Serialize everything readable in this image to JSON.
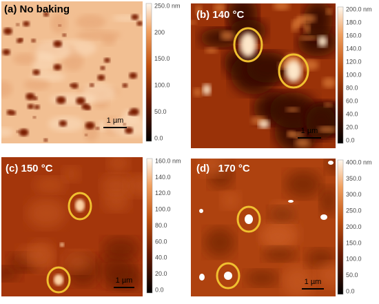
{
  "panels": [
    {
      "label": "(a) No baking",
      "scale_bar": "1 µm",
      "colorbar": [
        "250.0 nm",
        "200",
        "150.0",
        "100.0",
        "50.0",
        "0.0"
      ]
    },
    {
      "label": "(b) 140 °C",
      "scale_bar": "1 µm",
      "colorbar": [
        "200.0 nm",
        "180.0",
        "160.0",
        "140.0",
        "120.0",
        "100.0",
        "80.0",
        "60.0",
        "40.0",
        "20.0",
        "0.0"
      ]
    },
    {
      "label": "(c) 150 °C",
      "scale_bar": "1 µm",
      "colorbar": [
        "160.0 nm",
        "140.0",
        "120.0",
        "100.0",
        "80.0",
        "60.0",
        "40.0",
        "20.0",
        "0.0"
      ]
    },
    {
      "label": "(d)   170 °C",
      "scale_bar": "1 µm",
      "colorbar": [
        "400.0 nm",
        "350.0",
        "300.0",
        "250.0",
        "200.0",
        "150.0",
        "100.0",
        "50.0",
        "0.0"
      ]
    }
  ]
}
